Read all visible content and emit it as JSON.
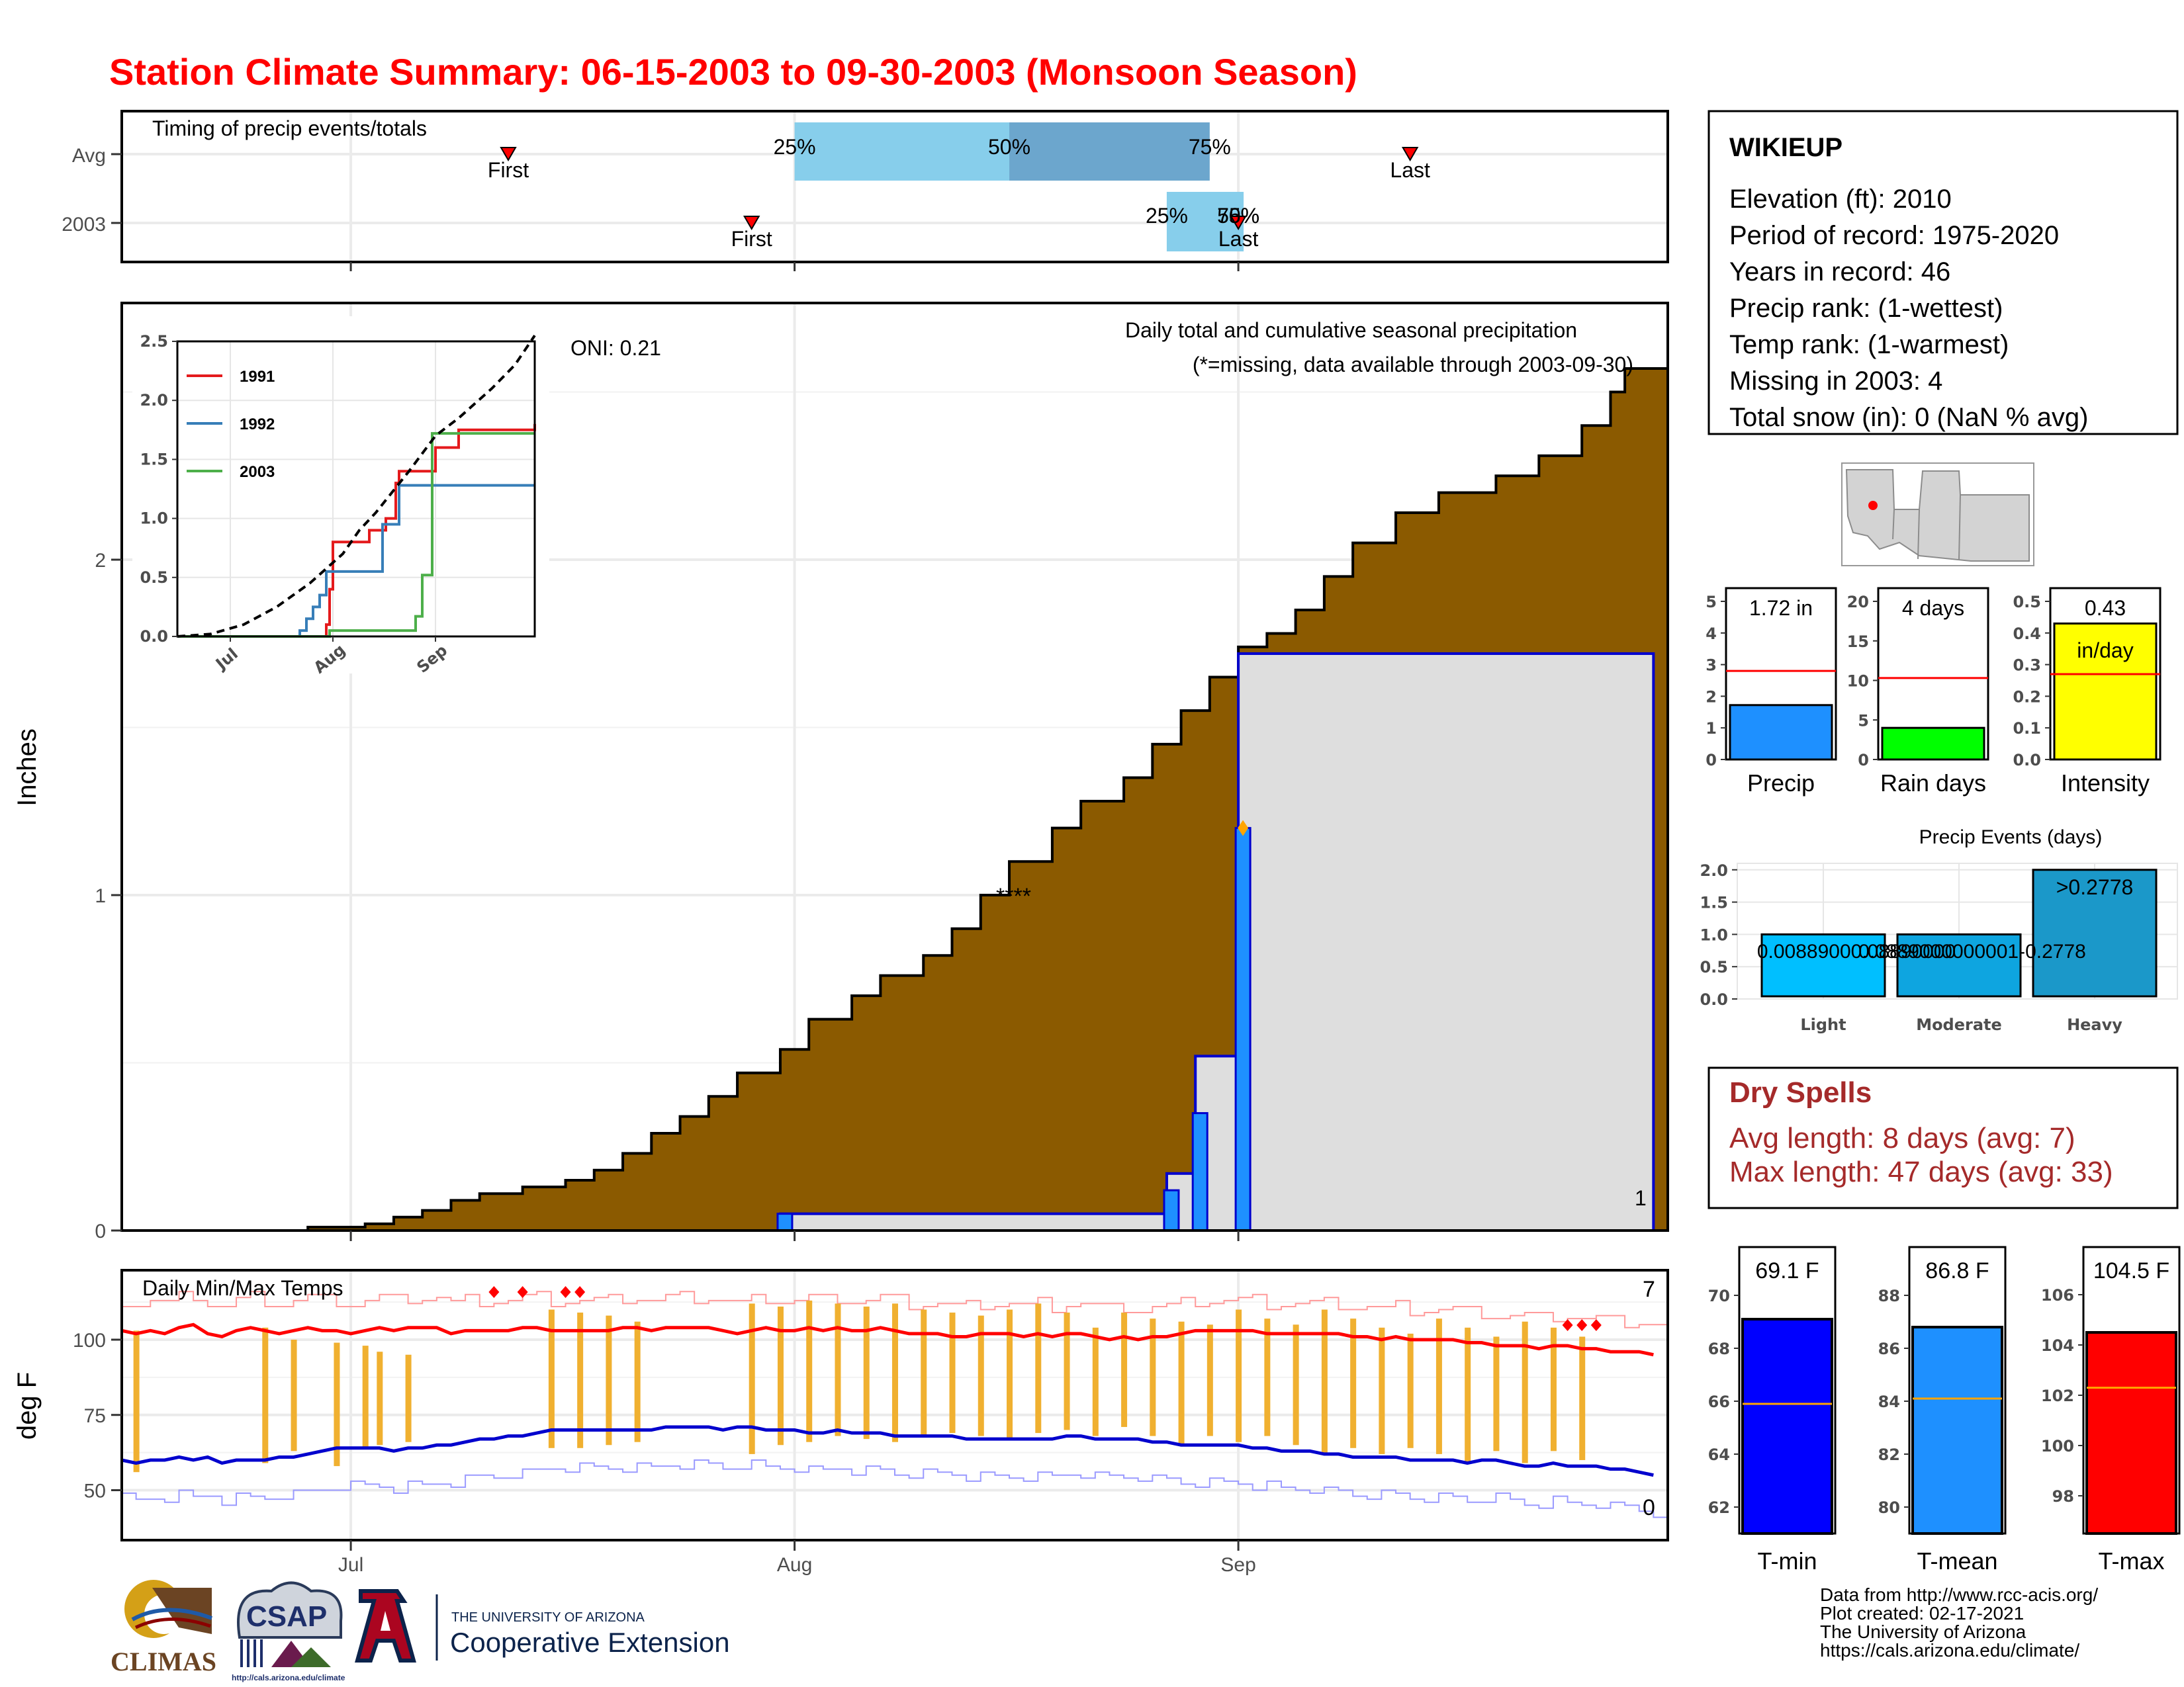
{
  "title": "Station Climate Summary: 06-15-2003 to 09-30-2003 (Monsoon Season)",
  "colors": {
    "title": "#ff0000",
    "precip_fill": "#8B5A00",
    "event_bar": "#1E90FF",
    "event_box": "#0000CD",
    "timing_light": "#87CEEB",
    "timing_dark": "#6CA6CD",
    "temp_bar": "#F0B030",
    "tmax_line": "#FF0000",
    "tmin_line": "#0000CD",
    "dry_text": "#A52A2A"
  },
  "timing": {
    "title": "Timing of precip events/totals",
    "rows": [
      {
        "label": "Avg",
        "first": "07-12",
        "last": "09-13",
        "q25": "08-01",
        "q50": "08-16",
        "q75": "08-30",
        "first_label": "First",
        "last_label": "Last",
        "q25_label": "25%",
        "q50_label": "50%",
        "q75_label": "75%"
      },
      {
        "label": "2003",
        "first": "07-29",
        "last": "09-01",
        "q25": "08-27",
        "q50": "09-01",
        "q75": "09-01",
        "first_label": "First",
        "last_label": "Last",
        "q25_label": "25%",
        "q50_label": "50%",
        "q75_label": "75%"
      }
    ]
  },
  "station": {
    "name": "WIKIEUP",
    "lines": [
      "Elevation (ft): 2010",
      "Period of record: 1975-2020",
      "Years in record: 46",
      "Precip rank:  (1-wettest)",
      "Temp rank:  (1-warmest)",
      "Missing in 2003: 4",
      "Total snow (in): 0 (NaN % avg)"
    ]
  },
  "main": {
    "ylabel": "Inches",
    "y_ticks": [
      "0",
      "1",
      "2"
    ],
    "x_ticks": [
      "Jul",
      "Aug",
      "Sep"
    ],
    "oni": "ONI: 0.21",
    "header": "Daily total and cumulative seasonal precipitation",
    "missing_note": "(*=missing, data available through 2003-09-30)",
    "missing_marks": "****",
    "corner_count": "1"
  },
  "temps": {
    "title": "Daily Min/Max Temps",
    "ylabel": "deg F",
    "y_ticks": [
      "50",
      "75",
      "100"
    ],
    "x_ticks": [
      "Jul",
      "Aug",
      "Sep"
    ],
    "count_high": "7",
    "count_low": "0"
  },
  "precip_box": {
    "label": "Precip",
    "value_label": "1.72 in",
    "ticks": [
      "0",
      "1",
      "2",
      "3",
      "4",
      "5"
    ]
  },
  "raindays_box": {
    "label": "Rain days",
    "value_label": "4 days",
    "ticks": [
      "0",
      "5",
      "10",
      "15",
      "20"
    ]
  },
  "intensity_box": {
    "label": "Intensity",
    "value_label": "0.43",
    "unit": "in/day",
    "ticks": [
      "0.0",
      "0.1",
      "0.2",
      "0.3",
      "0.4",
      "0.5"
    ]
  },
  "events_box": {
    "title": "Precip Events (days)",
    "ticks": [
      "0.0",
      "0.5",
      "1.0",
      "1.5",
      "2.0"
    ],
    "categories": [
      "Light",
      "Moderate",
      "Heavy"
    ],
    "bar_labels": [
      "0.00889000.08890000",
      "0.0889000000001-0.2778",
      ">0.2778"
    ]
  },
  "dry": {
    "title": "Dry Spells",
    "avg": "Avg length: 8 days (avg: 7)",
    "max": "Max length: 47 days (avg: 33)"
  },
  "temp_boxes": [
    {
      "label": "T-min",
      "value_label": "69.1 F",
      "ticks": [
        "62",
        "64",
        "66",
        "68",
        "70"
      ]
    },
    {
      "label": "T-mean",
      "value_label": "86.8 F",
      "ticks": [
        "80",
        "82",
        "84",
        "86",
        "88"
      ]
    },
    {
      "label": "T-max",
      "value_label": "104.5 F",
      "ticks": [
        "98",
        "100",
        "102",
        "104",
        "106"
      ]
    }
  ],
  "credits": [
    "Data from http://www.rcc-acis.org/",
    "Plot created: 02-17-2021",
    "The University of Arizona",
    "https://cals.arizona.edu/climate/"
  ],
  "logos": {
    "climas": "CLIMAS",
    "csap": "CSAP",
    "csap_url": "http://cals.arizona.edu/climate",
    "ua_top": "THE UNIVERSITY OF ARIZONA",
    "ua_bottom": "Cooperative Extension"
  },
  "chart_data": [
    {
      "type": "area",
      "name": "cumulative_precip",
      "x_start": "2003-06-15",
      "x_end": "2003-09-30",
      "ylabel": "Inches",
      "ylim": [
        0,
        2.5
      ],
      "cumulative_2003": [
        [
          "2003-06-15",
          0.0
        ],
        [
          "2003-06-26",
          0.0
        ],
        [
          "2003-06-28",
          0.01
        ],
        [
          "2003-07-01",
          0.01
        ],
        [
          "2003-07-02",
          0.02
        ],
        [
          "2003-07-04",
          0.04
        ],
        [
          "2003-07-06",
          0.06
        ],
        [
          "2003-07-08",
          0.09
        ],
        [
          "2003-07-10",
          0.11
        ],
        [
          "2003-07-13",
          0.13
        ],
        [
          "2003-07-16",
          0.15
        ],
        [
          "2003-07-18",
          0.18
        ],
        [
          "2003-07-20",
          0.23
        ],
        [
          "2003-07-22",
          0.29
        ],
        [
          "2003-07-24",
          0.34
        ],
        [
          "2003-07-26",
          0.4
        ],
        [
          "2003-07-28",
          0.47
        ],
        [
          "2003-07-31",
          0.54
        ],
        [
          "2003-08-02",
          0.63
        ],
        [
          "2003-08-05",
          0.7
        ],
        [
          "2003-08-07",
          0.76
        ],
        [
          "2003-08-10",
          0.82
        ],
        [
          "2003-08-12",
          0.9
        ],
        [
          "2003-08-14",
          1.0
        ],
        [
          "2003-08-16",
          1.1
        ],
        [
          "2003-08-19",
          1.2
        ],
        [
          "2003-08-21",
          1.28
        ],
        [
          "2003-08-24",
          1.35
        ],
        [
          "2003-08-26",
          1.45
        ],
        [
          "2003-08-28",
          1.55
        ],
        [
          "2003-08-30",
          1.65
        ],
        [
          "2003-09-01",
          1.74
        ],
        [
          "2003-09-03",
          1.78
        ],
        [
          "2003-09-05",
          1.85
        ],
        [
          "2003-09-07",
          1.95
        ],
        [
          "2003-09-09",
          2.05
        ],
        [
          "2003-09-12",
          2.14
        ],
        [
          "2003-09-15",
          2.2
        ],
        [
          "2003-09-19",
          2.25
        ],
        [
          "2003-09-22",
          2.31
        ],
        [
          "2003-09-25",
          2.4
        ],
        [
          "2003-09-27",
          2.5
        ],
        [
          "2003-09-28",
          2.57
        ],
        [
          "2003-09-30",
          2.57
        ]
      ],
      "daily_events_2003": [
        {
          "date": "2003-07-31",
          "value": 0.05
        },
        {
          "date": "2003-08-27",
          "value": 0.12
        },
        {
          "date": "2003-08-29",
          "value": 0.35
        },
        {
          "date": "2003-09-01",
          "value": 1.2
        }
      ],
      "cumulative_event_steps": [
        {
          "from": "2003-07-31",
          "to": "2003-08-27",
          "value": 0.05
        },
        {
          "from": "2003-08-27",
          "to": "2003-08-29",
          "value": 0.17
        },
        {
          "from": "2003-08-29",
          "to": "2003-09-01",
          "value": 0.52
        },
        {
          "from": "2003-09-01",
          "to": "2003-09-30",
          "value": 1.72
        }
      ],
      "peak_marker": {
        "date": "2003-09-01",
        "value": 1.2
      },
      "oni": 0.21
    },
    {
      "type": "line",
      "name": "inset_cumulative_comparison",
      "x_ticks": [
        "Jul",
        "Aug",
        "Sep"
      ],
      "ylim": [
        0,
        2.5
      ],
      "y_ticks": [
        "0.0",
        "0.5",
        "1.0",
        "1.5",
        "2.0",
        "2.5"
      ],
      "series": [
        {
          "name": "1991",
          "color": "#E41A1C",
          "points": [
            [
              0,
              0
            ],
            [
              45,
              0
            ],
            [
              45,
              0.1
            ],
            [
              46,
              0.1
            ],
            [
              46,
              0.4
            ],
            [
              47,
              0.4
            ],
            [
              47,
              0.8
            ],
            [
              58,
              0.8
            ],
            [
              58,
              0.9
            ],
            [
              63,
              0.9
            ],
            [
              63,
              1.0
            ],
            [
              66,
              1.0
            ],
            [
              66,
              1.3
            ],
            [
              67,
              1.3
            ],
            [
              67,
              1.4
            ],
            [
              78,
              1.4
            ],
            [
              78,
              1.6
            ],
            [
              85,
              1.6
            ],
            [
              85,
              1.75
            ],
            [
              108,
              1.75
            ],
            [
              108,
              1.8
            ]
          ]
        },
        {
          "name": "1992",
          "color": "#377EB8",
          "points": [
            [
              0,
              0
            ],
            [
              37,
              0
            ],
            [
              37,
              0.05
            ],
            [
              39,
              0.05
            ],
            [
              39,
              0.15
            ],
            [
              41,
              0.15
            ],
            [
              41,
              0.25
            ],
            [
              43,
              0.25
            ],
            [
              43,
              0.35
            ],
            [
              45,
              0.35
            ],
            [
              45,
              0.55
            ],
            [
              52,
              0.55
            ],
            [
              52,
              0.55
            ],
            [
              62,
              0.55
            ],
            [
              62,
              0.95
            ],
            [
              67,
              0.95
            ],
            [
              67,
              1.28
            ],
            [
              108,
              1.28
            ]
          ]
        },
        {
          "name": "2003",
          "color": "#4DAF4A",
          "points": [
            [
              0,
              0
            ],
            [
              46,
              0
            ],
            [
              46,
              0.05
            ],
            [
              72,
              0.05
            ],
            [
              72,
              0.17
            ],
            [
              74,
              0.17
            ],
            [
              74,
              0.52
            ],
            [
              77,
              0.52
            ],
            [
              77,
              1.72
            ],
            [
              108,
              1.72
            ]
          ]
        },
        {
          "name": "Avg",
          "color": "#000000",
          "dashed": true,
          "points": [
            [
              0,
              0
            ],
            [
              10,
              0.02
            ],
            [
              20,
              0.1
            ],
            [
              30,
              0.25
            ],
            [
              40,
              0.45
            ],
            [
              50,
              0.7
            ],
            [
              55,
              0.9
            ],
            [
              60,
              1.05
            ],
            [
              70,
              1.4
            ],
            [
              78,
              1.7
            ],
            [
              85,
              1.85
            ],
            [
              95,
              2.1
            ],
            [
              102,
              2.3
            ],
            [
              108,
              2.55
            ]
          ]
        }
      ]
    },
    {
      "type": "line",
      "name": "daily_temps",
      "ylabel": "deg F",
      "ylim": [
        40,
        125
      ],
      "tmax_daily": [
        103,
        102,
        103,
        102,
        104,
        105,
        102,
        101,
        103,
        104,
        103,
        102,
        103,
        104,
        103,
        103,
        102,
        103,
        104,
        103,
        104,
        104,
        104,
        102,
        103,
        103,
        103,
        103,
        104,
        104,
        103,
        103,
        103,
        103,
        103,
        104,
        104,
        103,
        104,
        104,
        104,
        104,
        103,
        102,
        103,
        104,
        103,
        103,
        104,
        103,
        104,
        103,
        103,
        104,
        103,
        102,
        102,
        102,
        101,
        101,
        102,
        102,
        102,
        101,
        102,
        101,
        102,
        102,
        101,
        100,
        101,
        100,
        101,
        101,
        102,
        103,
        103,
        103,
        103,
        103,
        102,
        102,
        102,
        102,
        102,
        102,
        101,
        101,
        100,
        101,
        100,
        100,
        100,
        100,
        99,
        99,
        98,
        98,
        98,
        97,
        98,
        98,
        97,
        97,
        96,
        96,
        96,
        95
      ],
      "tmin_daily": [
        60,
        59,
        60,
        60,
        61,
        60,
        61,
        59,
        60,
        60,
        60,
        61,
        61,
        62,
        63,
        64,
        64,
        64,
        64,
        63,
        64,
        64,
        65,
        65,
        66,
        67,
        67,
        68,
        68,
        69,
        70,
        70,
        70,
        70,
        70,
        70,
        70,
        70,
        71,
        71,
        71,
        71,
        70,
        71,
        71,
        70,
        70,
        70,
        69,
        69,
        70,
        69,
        69,
        69,
        68,
        68,
        68,
        68,
        68,
        67,
        67,
        67,
        67,
        67,
        67,
        67,
        68,
        68,
        67,
        67,
        67,
        67,
        66,
        66,
        65,
        65,
        65,
        65,
        65,
        64,
        64,
        63,
        63,
        63,
        62,
        62,
        61,
        61,
        61,
        61,
        60,
        60,
        60,
        60,
        59,
        60,
        60,
        59,
        58,
        58,
        59,
        58,
        58,
        58,
        57,
        57,
        56,
        55
      ],
      "daily_bars": [
        {
          "day": 1,
          "lo": 56,
          "hi": 103
        },
        {
          "day": 10,
          "lo": 59,
          "hi": 104
        },
        {
          "day": 12,
          "lo": 63,
          "hi": 100
        },
        {
          "day": 15,
          "lo": 58,
          "hi": 99
        },
        {
          "day": 17,
          "lo": 64,
          "hi": 98
        },
        {
          "day": 18,
          "lo": 65,
          "hi": 96
        },
        {
          "day": 20,
          "lo": 66,
          "hi": 95
        },
        {
          "day": 30,
          "lo": 64,
          "hi": 110
        },
        {
          "day": 32,
          "lo": 64,
          "hi": 109
        },
        {
          "day": 34,
          "lo": 65,
          "hi": 108
        },
        {
          "day": 36,
          "lo": 66,
          "hi": 106
        },
        {
          "day": 44,
          "lo": 62,
          "hi": 112
        },
        {
          "day": 46,
          "lo": 65,
          "hi": 111
        },
        {
          "day": 48,
          "lo": 66,
          "hi": 113
        },
        {
          "day": 50,
          "lo": 68,
          "hi": 112
        },
        {
          "day": 52,
          "lo": 67,
          "hi": 111
        },
        {
          "day": 54,
          "lo": 66,
          "hi": 112
        },
        {
          "day": 56,
          "lo": 68,
          "hi": 110
        },
        {
          "day": 58,
          "lo": 69,
          "hi": 109
        },
        {
          "day": 60,
          "lo": 68,
          "hi": 108
        },
        {
          "day": 62,
          "lo": 67,
          "hi": 110
        },
        {
          "day": 64,
          "lo": 69,
          "hi": 112
        },
        {
          "day": 66,
          "lo": 70,
          "hi": 109
        }
      ]
    },
    {
      "type": "bar",
      "name": "seasonal_totals",
      "categories": [
        "Precip",
        "Rain days",
        "Intensity"
      ],
      "values": [
        1.72,
        4,
        0.43
      ],
      "averages": [
        2.8,
        10.3,
        0.27
      ],
      "ylims": [
        [
          0,
          5
        ],
        [
          0,
          20
        ],
        [
          0,
          0.5
        ]
      ]
    },
    {
      "type": "bar",
      "name": "precip_events",
      "categories": [
        "Light",
        "Moderate",
        "Heavy"
      ],
      "values": [
        1,
        1,
        2
      ],
      "ylim": [
        0,
        2.1
      ]
    },
    {
      "type": "bar",
      "name": "temp_means",
      "categories": [
        "T-min",
        "T-mean",
        "T-max"
      ],
      "values": [
        69.1,
        86.8,
        104.5
      ],
      "averages": [
        65.9,
        84.1,
        102.3
      ],
      "ylims": [
        [
          61,
          70.5
        ],
        [
          79,
          88.5
        ],
        [
          96.5,
          106.5
        ]
      ]
    }
  ]
}
